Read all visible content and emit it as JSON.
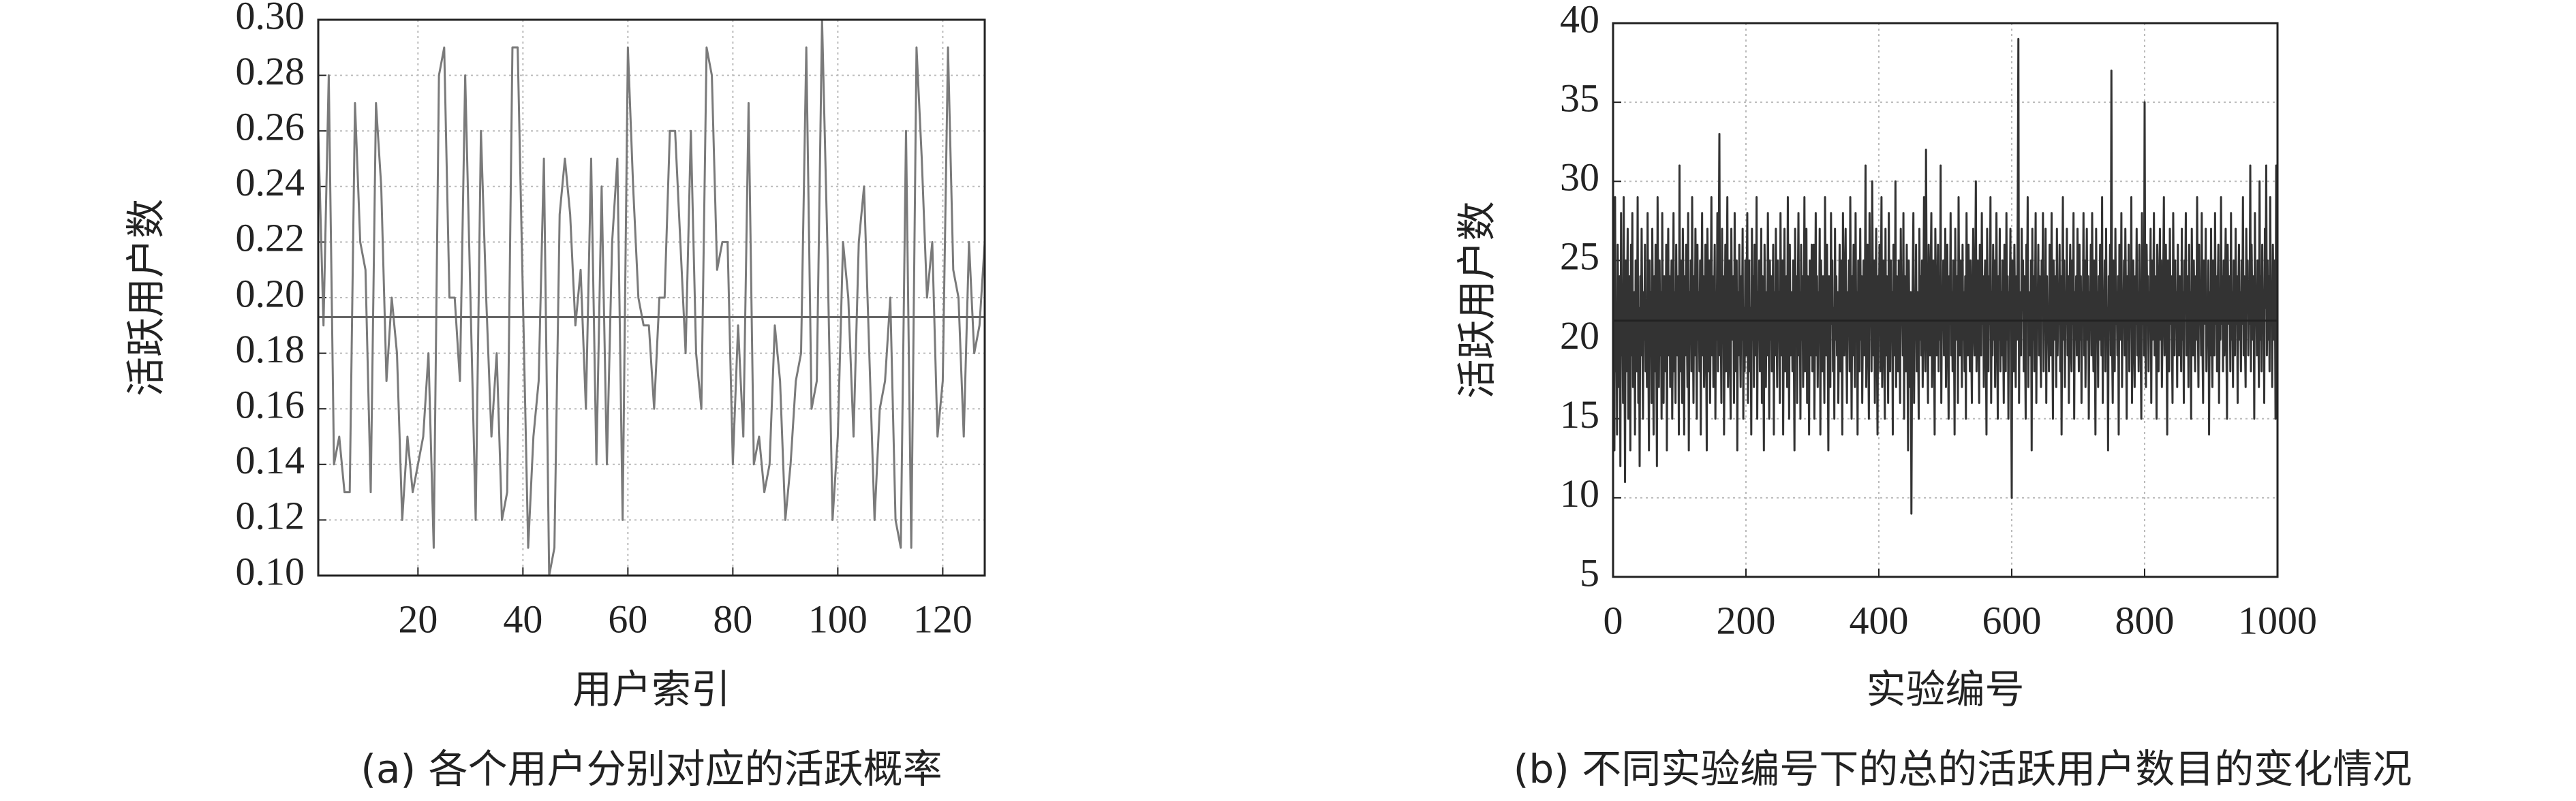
{
  "chart_data": [
    {
      "type": "line",
      "title": "(a) 各个用户分别对应的活跃概率",
      "x_label": "用户索引",
      "y_label": "活跃用户数",
      "xlim": [
        1,
        128
      ],
      "xticks": [
        20,
        40,
        60,
        80,
        100,
        120
      ],
      "ylim": [
        0.1,
        0.3
      ],
      "yticks": [
        {
          "value": 0.1,
          "label": "0.10"
        },
        0.12,
        0.14,
        0.16,
        0.18,
        {
          "value": 0.2,
          "label": "0.20"
        },
        0.22,
        0.24,
        0.26,
        0.28,
        {
          "value": 0.3,
          "label": "0.30"
        }
      ],
      "grid": true,
      "color": "#7a7a7a",
      "hline": 0.193,
      "hline_color": "#666666",
      "values": [
        0.26,
        0.19,
        0.28,
        0.14,
        0.15,
        0.13,
        0.13,
        0.27,
        0.22,
        0.21,
        0.13,
        0.27,
        0.24,
        0.17,
        0.2,
        0.18,
        0.12,
        0.15,
        0.13,
        0.14,
        0.15,
        0.18,
        0.11,
        0.28,
        0.29,
        0.2,
        0.2,
        0.17,
        0.28,
        0.2,
        0.12,
        0.26,
        0.2,
        0.15,
        0.18,
        0.12,
        0.13,
        0.29,
        0.29,
        0.2,
        0.11,
        0.15,
        0.17,
        0.25,
        0.1,
        0.11,
        0.23,
        0.25,
        0.23,
        0.19,
        0.21,
        0.16,
        0.25,
        0.14,
        0.24,
        0.14,
        0.22,
        0.25,
        0.12,
        0.29,
        0.24,
        0.2,
        0.19,
        0.19,
        0.16,
        0.2,
        0.2,
        0.26,
        0.26,
        0.22,
        0.18,
        0.26,
        0.18,
        0.16,
        0.29,
        0.28,
        0.21,
        0.22,
        0.22,
        0.14,
        0.19,
        0.15,
        0.27,
        0.14,
        0.15,
        0.13,
        0.14,
        0.19,
        0.17,
        0.12,
        0.14,
        0.17,
        0.18,
        0.29,
        0.16,
        0.17,
        0.3,
        0.22,
        0.12,
        0.15,
        0.22,
        0.2,
        0.15,
        0.22,
        0.24,
        0.18,
        0.12,
        0.16,
        0.17,
        0.2,
        0.12,
        0.11,
        0.26,
        0.11,
        0.29,
        0.25,
        0.2,
        0.22,
        0.15,
        0.17,
        0.29,
        0.21,
        0.2,
        0.15,
        0.22,
        0.18,
        0.19,
        0.22
      ]
    },
    {
      "type": "line",
      "title": "(b) 不同实验编号下的总的活跃用户数目的变化情况",
      "x_label": "实验编号",
      "y_label": "活跃用户数",
      "xlim": [
        0,
        1000
      ],
      "xticks": [
        0,
        200,
        400,
        600,
        800,
        1000
      ],
      "ylim": [
        5,
        40
      ],
      "yticks": [
        5,
        10,
        15,
        20,
        25,
        30,
        35,
        40
      ],
      "grid": true,
      "color": "#333333",
      "hline": 21.2,
      "hline_color": "#222222",
      "values": [
        21,
        25,
        13,
        29,
        18,
        22,
        14,
        26,
        20,
        17,
        24,
        12,
        28,
        19,
        23,
        16,
        29,
        21,
        11,
        25,
        18,
        22,
        27,
        15,
        20,
        24,
        13,
        26,
        19,
        28,
        17,
        21,
        23,
        14,
        25,
        20,
        18,
        29,
        16,
        22,
        12,
        24,
        19,
        27,
        21,
        15,
        23,
        20,
        26,
        18,
        22,
        17,
        28,
        20,
        13,
        25,
        19,
        23,
        16,
        27,
        21,
        14,
        24,
        18,
        26,
        20,
        12,
        29,
        22,
        17,
        25,
        19,
        23,
        15,
        28,
        21,
        16,
        24,
        20,
        18,
        26,
        13,
        22,
        27,
        19,
        24,
        17,
        21,
        25,
        15,
        20,
        28,
        18,
        23,
        16,
        26,
        21,
        19,
        24,
        14,
        31,
        18,
        25,
        20,
        16,
        27,
        22,
        14,
        24,
        19,
        26,
        21,
        17,
        28,
        13,
        23,
        20,
        25,
        18,
        29,
        22,
        16,
        24,
        19,
        27,
        21,
        15,
        26,
        20,
        23,
        18,
        25,
        14,
        22,
        28,
        19,
        24,
        17,
        21,
        26,
        20,
        13,
        27,
        23,
        18,
        25,
        16,
        22,
        29,
        19,
        24,
        17,
        21,
        26,
        15,
        23,
        20,
        28,
        18,
        25,
        33,
        19,
        22,
        16,
        27,
        21,
        24,
        14,
        20,
        26,
        18,
        23,
        29,
        17,
        22,
        25,
        19,
        15,
        27,
        21,
        20,
        24,
        16,
        28,
        22,
        18,
        25,
        13,
        23,
        19,
        26,
        21,
        17,
        24,
        20,
        27,
        15,
        22,
        18,
        25,
        19,
        23,
        28,
        16,
        21,
        25,
        18,
        22,
        14,
        27,
        20,
        24,
        17,
        26,
        21,
        19,
        29,
        15,
        23,
        20,
        25,
        18,
        22,
        27,
        16,
        24,
        20,
        13,
        26,
        21,
        17,
        23,
        19,
        28,
        22,
        15,
        25,
        20,
        24,
        18,
        21,
        26,
        14,
        23,
        19,
        27,
        22,
        17,
        25,
        20,
        23,
        16,
        28,
        21,
        19,
        25,
        14,
        22,
        27,
        18,
        20,
        24,
        17,
        29,
        21,
        15,
        26,
        19,
        23,
        22,
        18,
        25,
        20,
        13,
        27,
        21,
        24,
        16,
        22,
        28,
        19,
        23,
        15,
        26,
        20,
        24,
        17,
        21,
        29,
        18,
        22,
        27,
        16,
        24,
        20,
        14,
        25,
        21,
        19,
        26,
        18,
        22,
        26,
        15,
        21,
        28,
        19,
        24,
        17,
        23,
        20,
        27,
        14,
        25,
        22,
        18,
        24,
        21,
        16,
        29,
        23,
        19,
        26,
        20,
        13,
        24,
        22,
        17,
        28,
        21,
        25,
        18,
        22,
        15,
        27,
        20,
        24,
        19,
        23,
        16,
        21,
        26,
        18,
        25,
        20,
        14,
        28,
        22,
        19,
        24,
        27,
        20,
        16,
        23,
        21,
        25,
        18,
        29,
        22,
        15,
        24,
        19,
        26,
        21,
        17,
        28,
        20,
        23,
        14,
        25,
        22,
        18,
        27,
        20,
        24,
        16,
        21,
        25,
        19,
        23,
        31,
        17,
        22,
        26,
        20,
        15,
        28,
        21,
        24,
        18,
        30,
        23,
        19,
        25,
        16,
        22,
        27,
        20,
        14,
        24,
        21,
        26,
        18,
        23,
        29,
        17,
        22,
        25,
        20,
        15,
        27,
        19,
        24,
        21,
        16,
        28,
        22,
        18,
        25,
        20,
        23,
        14,
        26,
        21,
        19,
        30,
        17,
        24,
        22,
        18,
        25,
        20,
        16,
        27,
        21,
        23,
        19,
        28,
        15,
        24,
        22,
        18,
        26,
        20,
        13,
        25,
        21,
        17,
        23,
        9,
        19,
        24,
        28,
        16,
        22,
        20,
        26,
        18,
        23,
        21,
        15,
        27,
        20,
        24,
        19,
        25,
        17,
        22,
        29,
        21,
        18,
        32,
        23,
        20,
        16,
        26,
        22,
        19,
        24,
        28,
        17,
        21,
        25,
        20,
        14,
        27,
        23,
        19,
        22,
        26,
        18,
        24,
        20,
        31,
        16,
        23,
        21,
        25,
        19,
        22,
        27,
        17,
        22,
        26,
        20,
        15,
        24,
        21,
        28,
        19,
        23,
        18,
        25,
        21,
        14,
        27,
        22,
        20,
        24,
        16,
        29,
        21,
        19,
        25,
        22,
        17,
        26,
        20,
        23,
        18,
        24,
        15,
        28,
        21,
        19,
        26,
        22,
        18,
        25,
        20,
        16,
        23,
        27,
        21,
        19,
        24,
        30,
        18,
        22,
        25,
        20,
        16,
        26,
        22,
        19,
        28,
        21,
        24,
        17,
        23,
        25,
        20,
        14,
        27,
        22,
        18,
        24,
        21,
        29,
        16,
        23,
        19,
        26,
        20,
        25,
        17,
        22,
        28,
        21,
        15,
        24,
        20,
        27,
        18,
        23,
        19,
        25,
        21,
        16,
        26,
        22,
        18,
        28,
        20,
        24,
        15,
        23,
        21,
        27,
        19,
        10,
        25,
        22,
        18,
        26,
        21,
        17,
        24,
        20,
        28,
        39,
        16,
        23,
        21,
        19,
        27,
        22,
        25,
        18,
        24,
        20,
        15,
        26,
        22,
        29,
        17,
        23,
        21,
        19,
        25,
        13,
        27,
        20,
        24,
        18,
        22,
        28,
        16,
        23,
        21,
        26,
        19,
        24,
        20,
        17,
        25,
        22,
        28,
        18,
        23,
        21,
        27,
        16,
        24,
        20,
        22,
        18,
        26,
        23,
        19,
        28,
        21,
        15,
        25,
        22,
        20,
        24,
        17,
        27,
        19,
        23,
        21,
        26,
        18,
        24,
        14,
        22,
        29,
        20,
        25,
        17,
        23,
        21,
        27,
        19,
        24,
        16,
        22,
        26,
        20,
        18,
        25,
        21,
        28,
        15,
        23,
        20,
        24,
        19,
        27,
        22,
        18,
        26,
        20,
        24,
        16,
        23,
        21,
        28,
        19,
        25,
        17,
        22,
        27,
        20,
        24,
        15,
        23,
        21,
        26,
        19,
        28,
        22,
        18,
        25,
        20,
        14,
        27,
        21,
        23,
        17,
        24,
        20,
        26,
        22,
        19,
        29,
        16,
        23,
        21,
        25,
        18,
        27,
        20,
        22,
        13,
        24,
        21,
        26,
        19,
        37,
        20,
        16,
        25,
        22,
        18,
        27,
        21,
        23,
        19,
        24,
        14,
        26,
        22,
        20,
        28,
        17,
        23,
        21,
        25,
        19,
        27,
        22,
        15,
        24,
        20,
        26,
        18,
        23,
        21,
        29,
        16,
        22,
        25,
        20,
        17,
        24,
        21,
        27,
        19,
        23,
        18,
        26,
        22,
        20,
        15,
        28,
        21,
        24,
        19,
        35,
        20,
        17,
        26,
        22,
        24,
        18,
        23,
        21,
        27,
        16,
        25,
        20,
        22,
        28,
        19,
        24,
        21,
        15,
        26,
        23,
        18,
        22,
        27,
        20,
        25,
        17,
        21,
        24,
        29,
        19,
        22,
        26,
        20,
        14,
        25,
        23,
        18,
        27,
        21,
        24,
        20,
        16,
        28,
        22,
        19,
        25,
        21,
        23,
        17,
        26,
        21,
        19,
        24,
        22,
        18,
        27,
        20,
        23,
        16,
        25,
        22,
        28,
        19,
        21,
        24,
        17,
        26,
        20,
        23,
        15,
        27,
        22,
        19,
        25,
        21,
        18,
        24,
        20,
        29,
        22,
        17,
        26,
        21,
        23,
        19,
        28,
        20,
        16,
        25,
        24,
        21,
        27,
        18,
        22,
        20,
        25,
        14,
        23,
        19,
        27,
        20,
        17,
        25,
        22,
        19,
        28,
        21,
        24,
        18,
        23,
        26,
        16,
        22,
        20,
        29,
        21,
        24,
        18,
        25,
        19,
        23,
        27,
        20,
        15,
        26,
        22,
        21,
        24,
        18,
        28,
        20,
        23,
        17,
        25,
        22,
        19,
        27,
        21,
        24,
        16,
        22,
        26,
        20,
        23,
        18,
        25,
        21,
        29,
        19,
        24,
        20,
        17,
        27,
        22,
        25,
        19,
        23,
        21,
        31,
        18,
        26,
        22,
        20,
        24,
        15,
        28,
        21,
        23,
        19,
        25,
        22,
        17,
        30,
        20,
        24,
        18,
        26,
        21,
        23,
        16,
        27,
        22,
        31,
        19,
        25,
        20,
        24,
        18,
        29,
        21,
        23,
        17,
        26,
        22,
        20,
        25,
        15,
        31,
        20
      ]
    }
  ]
}
